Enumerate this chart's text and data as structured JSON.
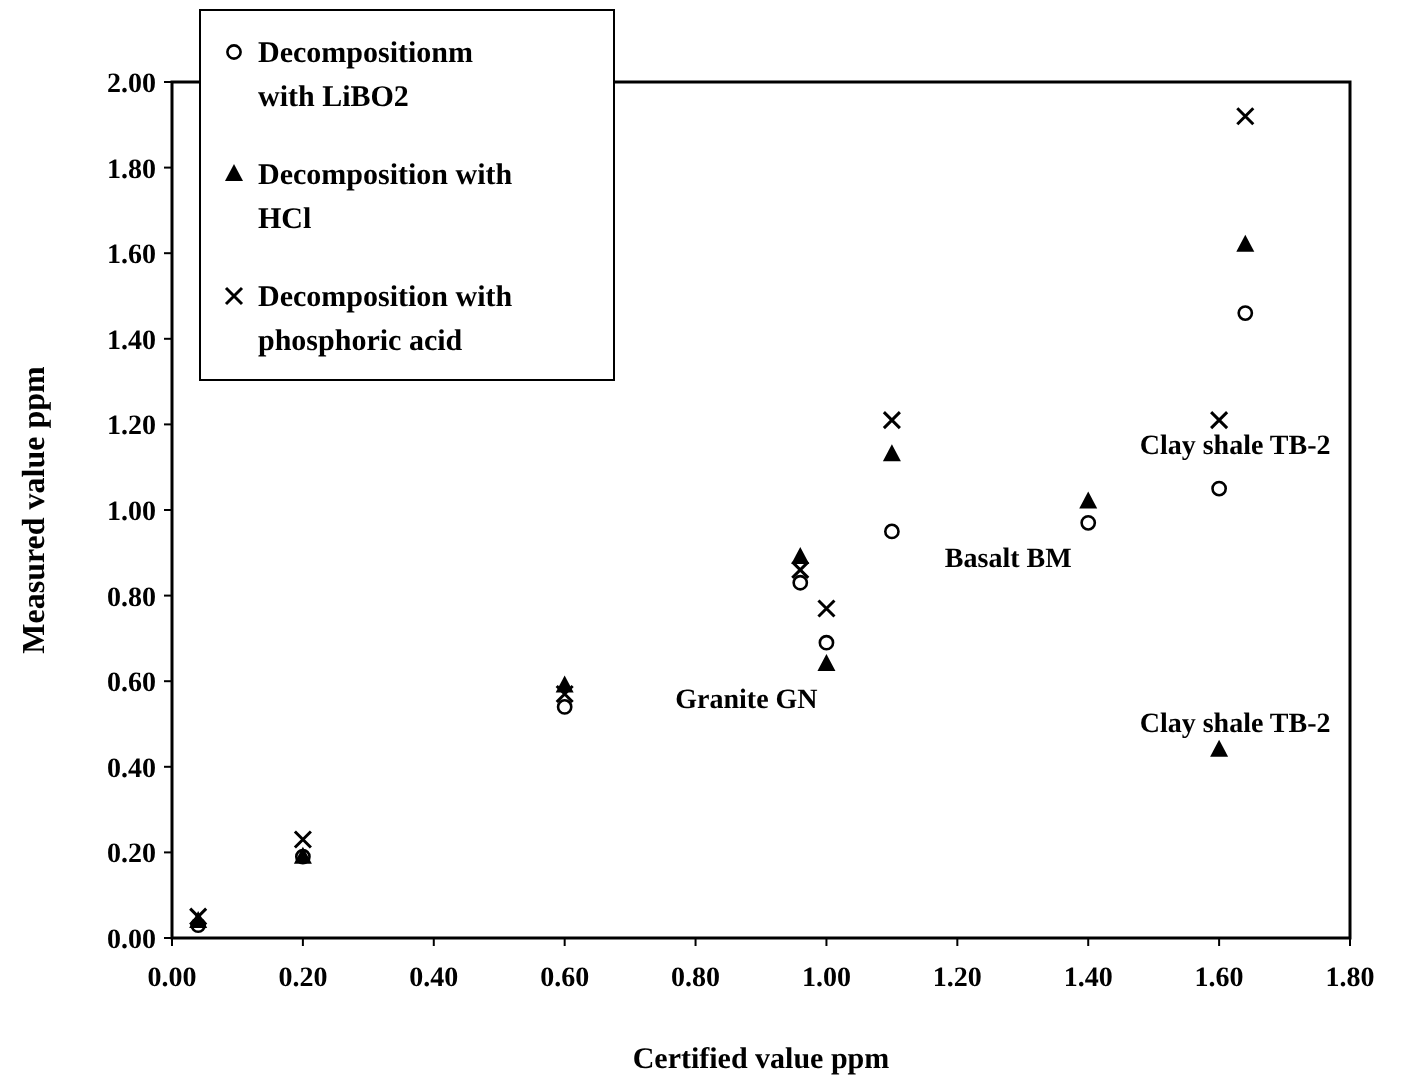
{
  "chart_data": {
    "type": "scatter",
    "xlabel": "Certified value ppm",
    "ylabel": "Measured value ppm",
    "x": [
      0.04,
      0.2,
      0.6,
      0.96,
      1.0,
      1.1,
      1.4,
      1.6,
      1.64
    ],
    "series": [
      {
        "name": "Decompositionm with LiBO2",
        "color": "#000000",
        "marker": "circle",
        "values": [
          0.03,
          0.19,
          0.54,
          0.83,
          0.69,
          0.95,
          0.97,
          1.05,
          1.46
        ]
      },
      {
        "name": "Decomposition with HCl",
        "color": "#000000",
        "marker": "triangle",
        "values": [
          0.04,
          0.19,
          0.59,
          0.89,
          0.64,
          1.13,
          1.02,
          0.44,
          1.62
        ]
      },
      {
        "name": "Decomposition with phosphoric acid",
        "color": "#000000",
        "marker": "cross",
        "values": [
          0.05,
          0.23,
          0.57,
          0.86,
          0.77,
          1.21,
          null,
          1.21,
          1.92
        ]
      }
    ],
    "xlim": [
      0,
      1.8
    ],
    "xticks": [
      {
        "value": 0,
        "label": "0.00"
      },
      {
        "value": 0.2,
        "label": "0.20"
      },
      {
        "value": 0.4,
        "label": "0.40"
      },
      {
        "value": 0.6,
        "label": "0.60"
      },
      {
        "value": 0.8,
        "label": "0.80"
      },
      {
        "value": 1,
        "label": "1.00"
      },
      {
        "value": 1.2,
        "label": "1.20"
      },
      {
        "value": 1.4,
        "label": "1.40"
      },
      {
        "value": 1.6,
        "label": "1.60"
      },
      {
        "value": 1.8,
        "label": "1.80"
      }
    ],
    "ylim": [
      0,
      2
    ],
    "yticks": [
      {
        "value": 0,
        "label": "0.00"
      },
      {
        "value": 0.2,
        "label": "0.20"
      },
      {
        "value": 0.4,
        "label": "0.40"
      },
      {
        "value": 0.6,
        "label": "0.60"
      },
      {
        "value": 0.8,
        "label": "0.80"
      },
      {
        "value": 1,
        "label": "1.00"
      },
      {
        "value": 1.2,
        "label": "1.20"
      },
      {
        "value": 1.4,
        "label": "1.40"
      },
      {
        "value": 1.6,
        "label": "1.60"
      },
      {
        "value": 1.8,
        "label": "1.80"
      },
      {
        "value": 2,
        "label": "2.00"
      }
    ],
    "annotations": [
      {
        "text": "Granite GN",
        "x": 1.0,
        "y": 0.64
      },
      {
        "text": "Basalt BM",
        "x": 1.4,
        "y": 0.97
      },
      {
        "text": "Clay shale TB-2",
        "x": 1.6,
        "y": 1.21
      },
      {
        "text": "Clay shale TB-2",
        "x": 1.6,
        "y": 0.44
      }
    ],
    "grid": false,
    "legend": "top left"
  }
}
